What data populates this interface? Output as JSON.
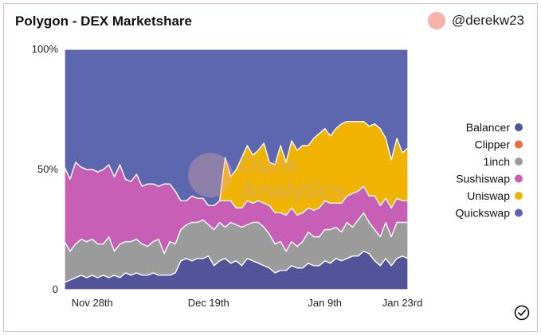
{
  "header": {
    "title": "Polygon - DEX Marketshare",
    "author": "@derekw23"
  },
  "watermark": {
    "line1": "Dune",
    "line2": "Analytics"
  },
  "icons": {
    "avatar": "avatar-circle-icon",
    "status": "check-circle-icon"
  },
  "colors": {
    "Balancer": "#525398",
    "Clipper": "#ee6a3a",
    "1inch": "#9b9b9b",
    "Sushiswap": "#c75fb6",
    "Uniswap": "#f0b400",
    "Quickswap": "#5c67b0"
  },
  "chart_data": {
    "type": "area",
    "stacked": true,
    "ylim": [
      0,
      100
    ],
    "y_tick_labels": [
      "0",
      "50%",
      "100%"
    ],
    "y_ticks": [
      0,
      50,
      100
    ],
    "x_range": [
      0,
      62
    ],
    "x_tick_labels": [
      {
        "label": "Nov 28th",
        "x": 5
      },
      {
        "label": "Dec 19th",
        "x": 26
      },
      {
        "label": "Jan 9th",
        "x": 47
      },
      {
        "label": "Jan 23rd",
        "x": 61
      }
    ],
    "legend_position": "right",
    "grid": false,
    "x": [
      0,
      1,
      2,
      3,
      4,
      5,
      6,
      7,
      8,
      9,
      10,
      11,
      12,
      13,
      14,
      15,
      16,
      17,
      18,
      19,
      20,
      21,
      22,
      23,
      24,
      25,
      26,
      27,
      28,
      29,
      30,
      31,
      32,
      33,
      34,
      35,
      36,
      37,
      38,
      39,
      40,
      41,
      42,
      43,
      44,
      45,
      46,
      47,
      48,
      49,
      50,
      51,
      52,
      53,
      54,
      55,
      56,
      57,
      58,
      59,
      60,
      61,
      62
    ],
    "series": [
      {
        "name": "Balancer",
        "values": [
          3,
          4,
          5,
          6,
          5,
          6,
          5,
          6,
          5,
          6,
          5,
          7,
          6,
          7,
          6,
          6,
          7,
          6,
          6,
          6,
          7,
          12,
          13,
          12,
          13,
          13,
          14,
          10,
          12,
          13,
          11,
          12,
          10,
          13,
          12,
          11,
          10,
          9,
          7,
          8,
          8,
          10,
          9,
          9,
          11,
          10,
          10,
          12,
          11,
          13,
          12,
          13,
          14,
          14,
          16,
          15,
          12,
          10,
          13,
          10,
          13,
          14,
          13
        ]
      },
      {
        "name": "Clipper",
        "values": [
          0,
          0,
          0,
          0,
          0,
          0,
          0,
          0,
          0,
          0,
          0,
          0,
          0,
          0,
          0,
          0,
          0,
          0,
          0,
          0,
          0,
          0,
          0,
          0,
          0,
          0,
          0,
          0,
          0,
          0,
          0,
          0,
          0,
          0,
          0,
          0,
          0,
          0,
          0,
          0,
          0,
          0,
          0,
          0,
          0,
          0,
          0,
          0,
          0,
          0,
          0,
          0,
          0,
          0,
          0,
          0,
          0,
          0,
          0,
          0,
          0,
          0,
          0
        ]
      },
      {
        "name": "1inch",
        "values": [
          17,
          12,
          14,
          15,
          15,
          15,
          14,
          13,
          17,
          10,
          14,
          13,
          14,
          14,
          13,
          12,
          13,
          15,
          9,
          14,
          12,
          13,
          14,
          16,
          15,
          16,
          13,
          15,
          16,
          13,
          17,
          15,
          16,
          14,
          16,
          17,
          16,
          14,
          12,
          12,
          8,
          10,
          9,
          11,
          13,
          12,
          12,
          13,
          14,
          13,
          12,
          15,
          12,
          15,
          16,
          13,
          13,
          12,
          15,
          12,
          15,
          14,
          15
        ]
      },
      {
        "name": "Sushiswap",
        "values": [
          31,
          30,
          34,
          30,
          30,
          29,
          30,
          31,
          30,
          31,
          33,
          26,
          25,
          27,
          24,
          26,
          24,
          22,
          29,
          24,
          22,
          12,
          10,
          11,
          10,
          9,
          8,
          10,
          9,
          11,
          9,
          7,
          8,
          10,
          8,
          9,
          10,
          12,
          13,
          12,
          15,
          14,
          13,
          12,
          10,
          11,
          12,
          12,
          11,
          10,
          12,
          11,
          14,
          12,
          11,
          11,
          14,
          13,
          10,
          12,
          10,
          9,
          9
        ]
      },
      {
        "name": "Uniswap",
        "values": [
          0,
          0,
          0,
          0,
          0,
          0,
          0,
          0,
          0,
          0,
          0,
          0,
          0,
          0,
          0,
          0,
          0,
          0,
          0,
          0,
          0,
          0,
          0,
          0,
          0,
          0,
          0,
          0,
          0,
          18,
          10,
          16,
          21,
          23,
          20,
          21,
          25,
          18,
          20,
          28,
          22,
          28,
          27,
          28,
          26,
          30,
          31,
          30,
          28,
          31,
          33,
          31,
          30,
          29,
          27,
          29,
          30,
          32,
          25,
          20,
          25,
          20,
          22
        ]
      },
      {
        "name": "Quickswap",
        "values": [
          49,
          54,
          47,
          49,
          50,
          50,
          51,
          50,
          48,
          53,
          48,
          54,
          55,
          52,
          57,
          56,
          56,
          57,
          56,
          56,
          59,
          63,
          63,
          61,
          62,
          62,
          65,
          65,
          63,
          45,
          53,
          50,
          45,
          40,
          44,
          42,
          39,
          47,
          48,
          40,
          47,
          38,
          42,
          40,
          40,
          37,
          35,
          33,
          36,
          33,
          31,
          30,
          30,
          30,
          30,
          32,
          31,
          33,
          37,
          46,
          37,
          43,
          41
        ]
      }
    ]
  }
}
